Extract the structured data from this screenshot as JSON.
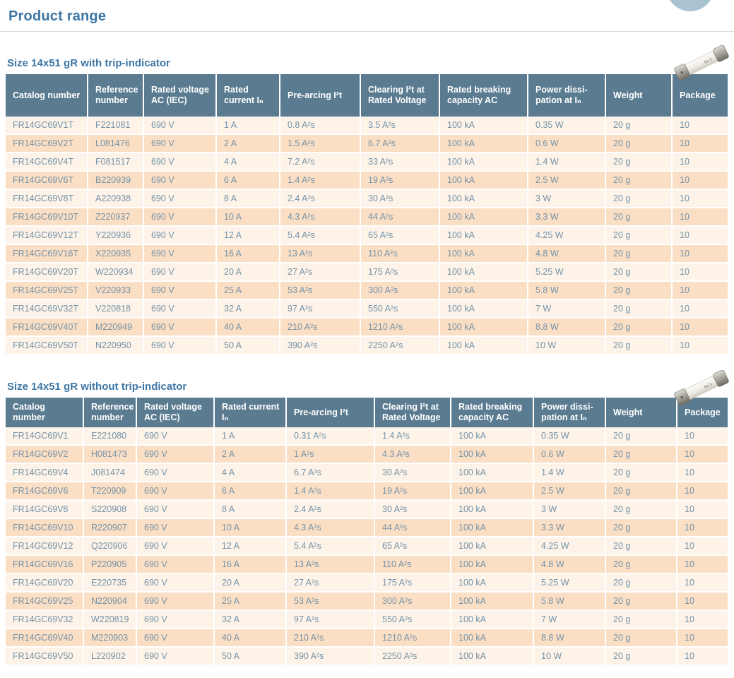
{
  "page": {
    "title": "Product range"
  },
  "colors": {
    "accent_blue": "#3d76a5",
    "table_header_bg": "#5a7b90",
    "row_light": "#fdf3e8",
    "row_dark": "#fbdfc4",
    "cell_text": "#7593a9",
    "corner_circle": "#a9c3d2"
  },
  "decor": {
    "corner_circle": "partial-circle-decoration",
    "fuse_images": [
      "fuse-photo",
      "fuse-photo"
    ]
  },
  "tables": [
    {
      "heading": "Size 14x51 gR with trip-indicator",
      "columns": [
        "Catalog number",
        "Reference number",
        "Rated voltage AC (IEC)",
        "Rated current Iₙ",
        "Pre-arcing I²t",
        "Clearing I²t at Rated Voltage",
        "Rated breaking capacity AC",
        "Power dissi-pation at Iₙ",
        "Weight",
        "Package"
      ],
      "rows": [
        [
          "FR14GC69V1T",
          "F221081",
          "690 V",
          "1 A",
          "0.8 A²s",
          "3.5 A²s",
          "100 kA",
          "0.35 W",
          "20 g",
          "10"
        ],
        [
          "FR14GC69V2T",
          "L081476",
          "690 V",
          "2 A",
          "1.5 A²s",
          "6.7 A²s",
          "100 kA",
          "0.6 W",
          "20 g",
          "10"
        ],
        [
          "FR14GC69V4T",
          "F081517",
          "690 V",
          "4 A",
          "7.2 A²s",
          "33 A²s",
          "100 kA",
          "1.4 W",
          "20 g",
          "10"
        ],
        [
          "FR14GC69V6T",
          "B220939",
          "690 V",
          "6 A",
          "1.4 A²s",
          "19 A²s",
          "100 kA",
          "2.5 W",
          "20 g",
          "10"
        ],
        [
          "FR14GC69V8T",
          "A220938",
          "690 V",
          "8 A",
          "2.4 A²s",
          "30 A²s",
          "100 kA",
          "3 W",
          "20 g",
          "10"
        ],
        [
          "FR14GC69V10T",
          "Z220937",
          "690 V",
          "10 A",
          "4.3 A²s",
          "44 A²s",
          "100 kA",
          "3.3 W",
          "20 g",
          "10"
        ],
        [
          "FR14GC69V12T",
          "Y220936",
          "690 V",
          "12 A",
          "5.4 A²s",
          "65 A²s",
          "100 kA",
          "4.25 W",
          "20 g",
          "10"
        ],
        [
          "FR14GC69V16T",
          "X220935",
          "690 V",
          "16 A",
          "13 A²s",
          "110 A²s",
          "100 kA",
          "4.8 W",
          "20 g",
          "10"
        ],
        [
          "FR14GC69V20T",
          "W220934",
          "690 V",
          "20 A",
          "27 A²s",
          "175 A²s",
          "100 kA",
          "5.25 W",
          "20 g",
          "10"
        ],
        [
          "FR14GC69V25T",
          "V220933",
          "690 V",
          "25 A",
          "53 A²s",
          "300 A²s",
          "100 kA",
          "5.8 W",
          "20 g",
          "10"
        ],
        [
          "FR14GC69V32T",
          "V220818",
          "690 V",
          "32 A",
          "97 A²s",
          "550 A²s",
          "100 kA",
          "7 W",
          "20 g",
          "10"
        ],
        [
          "FR14GC69V40T",
          "M220949",
          "690 V",
          "40 A",
          "210 A²s",
          "1210 A²s",
          "100 kA",
          "8.8 W",
          "20 g",
          "10"
        ],
        [
          "FR14GC69V50T",
          "N220950",
          "690 V",
          "50 A",
          "390 A²s",
          "2250 A²s",
          "100 kA",
          "10 W",
          "20 g",
          "10"
        ]
      ]
    },
    {
      "heading": "Size 14x51 gR without trip-indicator",
      "columns": [
        "Catalog number",
        "Reference number",
        "Rated voltage AC (IEC)",
        "Rated current Iₙ",
        "Pre-arcing I²t",
        "Clearing I²t at Rated Voltage",
        "Rated breaking capacity AC",
        "Power dissi-pation at Iₙ",
        "Weight",
        "Package"
      ],
      "rows": [
        [
          "FR14GC69V1",
          "E221080",
          "690 V",
          "1 A",
          "0.31 A²s",
          "1.4 A²s",
          "100 kA",
          "0.35 W",
          "20 g",
          "10"
        ],
        [
          "FR14GC69V2",
          "H081473",
          "690 V",
          "2 A",
          "1 A²s",
          "4.3 A²s",
          "100 kA",
          "0.6 W",
          "20 g",
          "10"
        ],
        [
          "FR14GC69V4",
          "J081474",
          "690 V",
          "4 A",
          "6.7 A²s",
          "30 A²s",
          "100 kA",
          "1.4 W",
          "20 g",
          "10"
        ],
        [
          "FR14GC69V6",
          "T220909",
          "690 V",
          "6 A",
          "1.4 A²s",
          "19 A²s",
          "100 kA",
          "2.5 W",
          "20 g",
          "10"
        ],
        [
          "FR14GC69V8",
          "S220908",
          "690 V",
          "8 A",
          "2.4 A²s",
          "30 A²s",
          "100 kA",
          "3 W",
          "20 g",
          "10"
        ],
        [
          "FR14GC69V10",
          "R220907",
          "690 V",
          "10 A",
          "4.3 A²s",
          "44 A²s",
          "100 kA",
          "3.3 W",
          "20 g",
          "10"
        ],
        [
          "FR14GC69V12",
          "Q220906",
          "690 V",
          "12 A",
          "5.4 A²s",
          "65 A²s",
          "100 kA",
          "4.25 W",
          "20 g",
          "10"
        ],
        [
          "FR14GC69V16",
          "P220905",
          "690 V",
          "16 A",
          "13 A²s",
          "110 A²s",
          "100 kA",
          "4.8 W",
          "20 g",
          "10"
        ],
        [
          "FR14GC69V20",
          "E220735",
          "690 V",
          "20 A",
          "27 A²s",
          "175 A²s",
          "100 kA",
          "5.25 W",
          "20 g",
          "10"
        ],
        [
          "FR14GC69V25",
          "N220904",
          "690 V",
          "25 A",
          "53 A²s",
          "300 A²s",
          "100 kA",
          "5.8 W",
          "20 g",
          "10"
        ],
        [
          "FR14GC69V32",
          "W220819",
          "690 V",
          "32 A",
          "97 A²s",
          "550 A²s",
          "100 kA",
          "7 W",
          "20 g",
          "10"
        ],
        [
          "FR14GC69V40",
          "M220903",
          "690 V",
          "40 A",
          "210 A²s",
          "1210 A²s",
          "100 kA",
          "8.8 W",
          "20 g",
          "10"
        ],
        [
          "FR14GC69V50",
          "L220902",
          "690 V",
          "50 A",
          "390 A²s",
          "2250 A²s",
          "100 kA",
          "10 W",
          "20 g",
          "10"
        ]
      ]
    }
  ]
}
